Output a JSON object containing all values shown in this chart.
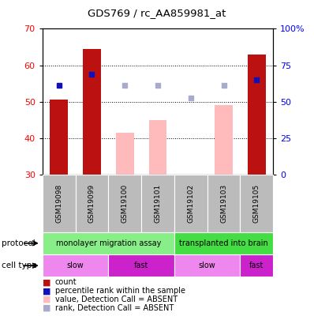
{
  "title": "GDS769 / rc_AA859981_at",
  "samples": [
    "GSM19098",
    "GSM19099",
    "GSM19100",
    "GSM19101",
    "GSM19102",
    "GSM19103",
    "GSM19105"
  ],
  "bar_values": [
    50.5,
    64.5,
    41.5,
    45.0,
    null,
    49.0,
    63.0
  ],
  "bar_colors": [
    "#bb1111",
    "#bb1111",
    "#ffbbbb",
    "#ffbbbb",
    null,
    "#ffbbbb",
    "#bb1111"
  ],
  "rank_dots": [
    54.5,
    57.5,
    54.5,
    54.5,
    51.0,
    54.5,
    56.0
  ],
  "rank_dot_colors": [
    "#1111bb",
    "#1111bb",
    "#aaaacc",
    "#aaaacc",
    "#aaaacc",
    "#aaaacc",
    "#1111bb"
  ],
  "ylim_left": [
    30,
    70
  ],
  "ylim_right": [
    0,
    100
  ],
  "yticks_left": [
    30,
    40,
    50,
    60,
    70
  ],
  "yticks_right": [
    0,
    25,
    50,
    75,
    100
  ],
  "ytick_labels_right": [
    "0",
    "25",
    "50",
    "75",
    "100%"
  ],
  "bar_width": 0.55,
  "protocol_labels": [
    {
      "text": "monolayer migration assay",
      "start": 0,
      "end": 3,
      "color": "#88ee88"
    },
    {
      "text": "transplanted into brain",
      "start": 4,
      "end": 6,
      "color": "#44dd44"
    }
  ],
  "celltype_labels": [
    {
      "text": "slow",
      "start": 0,
      "end": 1,
      "color": "#ee88ee"
    },
    {
      "text": "fast",
      "start": 2,
      "end": 3,
      "color": "#cc22cc"
    },
    {
      "text": "slow",
      "start": 4,
      "end": 5,
      "color": "#ee88ee"
    },
    {
      "text": "fast",
      "start": 6,
      "end": 6,
      "color": "#cc22cc"
    }
  ],
  "legend_items": [
    {
      "color": "#bb1111",
      "label": "count"
    },
    {
      "color": "#1111bb",
      "label": "percentile rank within the sample"
    },
    {
      "color": "#ffbbbb",
      "label": "value, Detection Call = ABSENT"
    },
    {
      "color": "#aaaacc",
      "label": "rank, Detection Call = ABSENT"
    }
  ],
  "dotgrid_yticks": [
    40,
    50,
    60
  ]
}
